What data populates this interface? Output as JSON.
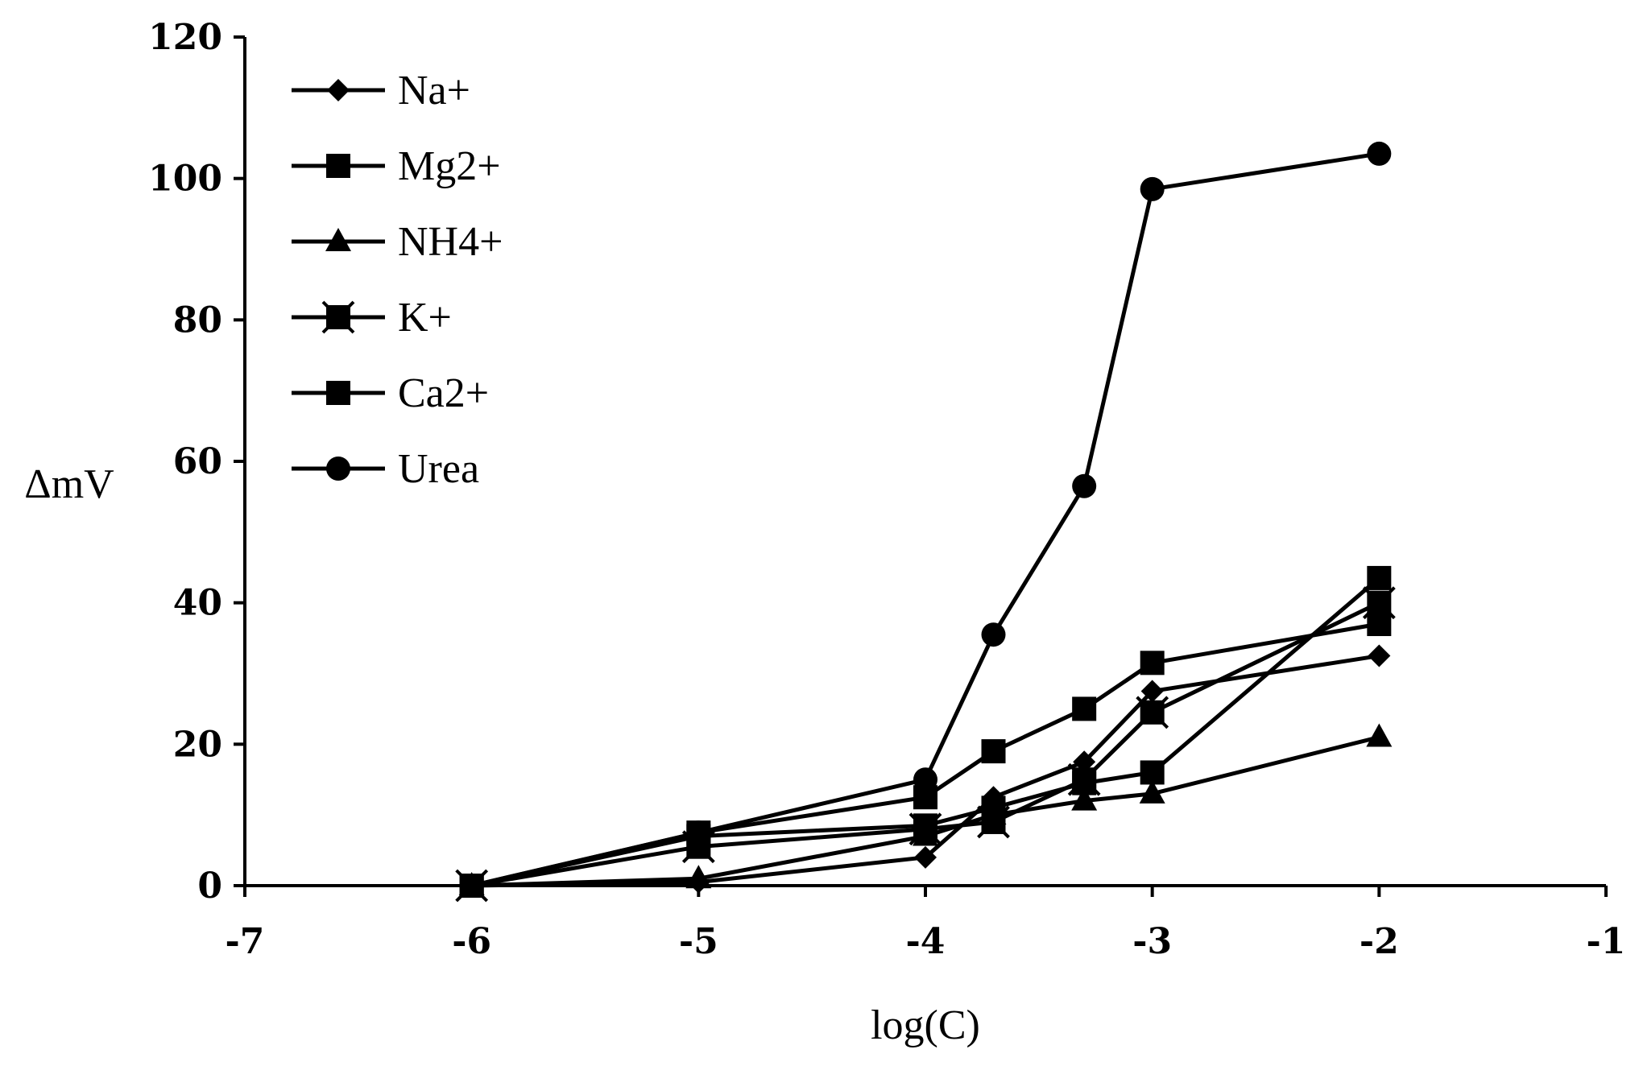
{
  "chart_data": {
    "type": "line",
    "title": "",
    "xlabel": "log(C)",
    "ylabel": "ΔmV",
    "xlim": [
      -7,
      -1
    ],
    "ylim": [
      0,
      120
    ],
    "xticks": [
      -7,
      -6,
      -5,
      -4,
      -3,
      -2,
      -1
    ],
    "yticks": [
      0,
      20,
      40,
      60,
      80,
      100,
      120
    ],
    "xtick_labels": [
      "-7",
      "-6",
      "-5",
      "-4",
      "-3",
      "-2",
      "-1"
    ],
    "ytick_labels": [
      "0",
      "20",
      "40",
      "60",
      "80",
      "100",
      "120"
    ],
    "grid": false,
    "legend_position": "top-left",
    "x": [
      -6,
      -5,
      -4,
      -3.7,
      -3.3,
      -3,
      -2
    ],
    "series": [
      {
        "name": "Na+",
        "marker": "diamond",
        "values": [
          0,
          0.5,
          4,
          12.5,
          17.5,
          27.5,
          32.5
        ]
      },
      {
        "name": "Mg2+",
        "marker": "square",
        "values": [
          0,
          7.5,
          12.5,
          19,
          25,
          31.5,
          37
        ]
      },
      {
        "name": "NH4+",
        "marker": "triangle",
        "values": [
          0,
          1,
          7,
          10,
          12,
          13,
          21
        ]
      },
      {
        "name": "K+",
        "marker": "xsquare",
        "values": [
          0,
          5.5,
          8,
          9,
          15,
          24.5,
          40
        ]
      },
      {
        "name": "Ca2+",
        "marker": "square",
        "values": [
          0,
          7,
          8.5,
          11,
          14.5,
          16,
          43.5
        ]
      },
      {
        "name": "Urea",
        "marker": "circle",
        "values": [
          0,
          7.5,
          15,
          35.5,
          56.5,
          98.5,
          103.5
        ]
      }
    ],
    "colors": {
      "line": "#000000",
      "background": "#ffffff"
    }
  }
}
